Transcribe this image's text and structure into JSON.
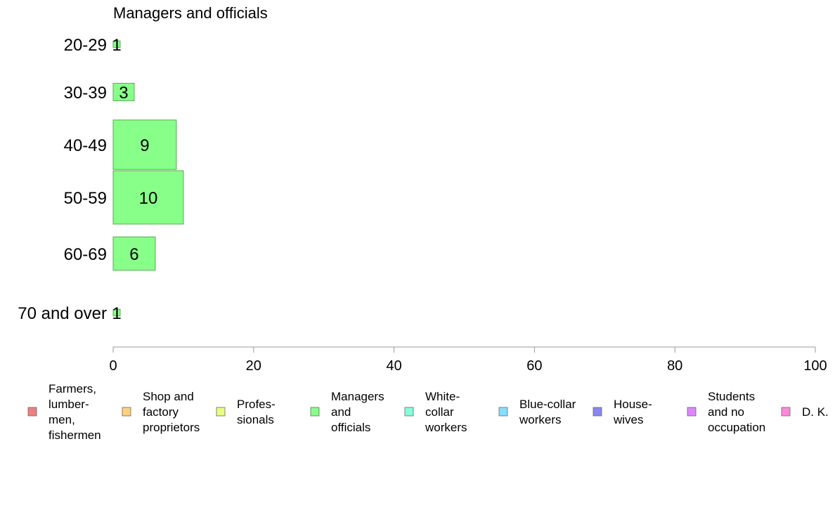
{
  "chart_data": {
    "type": "bar",
    "orientation": "horizontal",
    "title": "Managers and officials",
    "categories": [
      "20-29",
      "30-39",
      "40-49",
      "50-59",
      "60-69",
      "70 and over"
    ],
    "values": [
      1,
      3,
      9,
      10,
      6,
      1
    ],
    "value_labels": [
      "1",
      "3",
      "9",
      "10",
      "6",
      "1"
    ],
    "bar_color": "#88ff88",
    "bar_stroke": "#55aa55",
    "xlim": [
      0,
      100
    ],
    "xticks": [
      0,
      20,
      40,
      60,
      80,
      100
    ],
    "grid": false,
    "legend_position": "bottom",
    "legend": [
      {
        "label": [
          "Farmers,",
          "lumber-",
          "men,",
          "fishermen"
        ],
        "color": "#f08080"
      },
      {
        "label": [
          "Shop and",
          "factory",
          "proprietors"
        ],
        "color": "#ffd080"
      },
      {
        "label": [
          "Profes-",
          "sionals"
        ],
        "color": "#e8ff80"
      },
      {
        "label": [
          "Managers",
          "and",
          "officials"
        ],
        "color": "#88ff88"
      },
      {
        "label": [
          "White-",
          "collar",
          "workers"
        ],
        "color": "#88ffdd"
      },
      {
        "label": [
          "Blue-collar",
          "workers"
        ],
        "color": "#88ddff"
      },
      {
        "label": [
          "House-",
          "wives"
        ],
        "color": "#8888ee"
      },
      {
        "label": [
          "Students",
          "and no",
          "occupation"
        ],
        "color": "#dd88ff"
      },
      {
        "label": [
          "D. K."
        ],
        "color": "#ff88dd"
      }
    ]
  }
}
